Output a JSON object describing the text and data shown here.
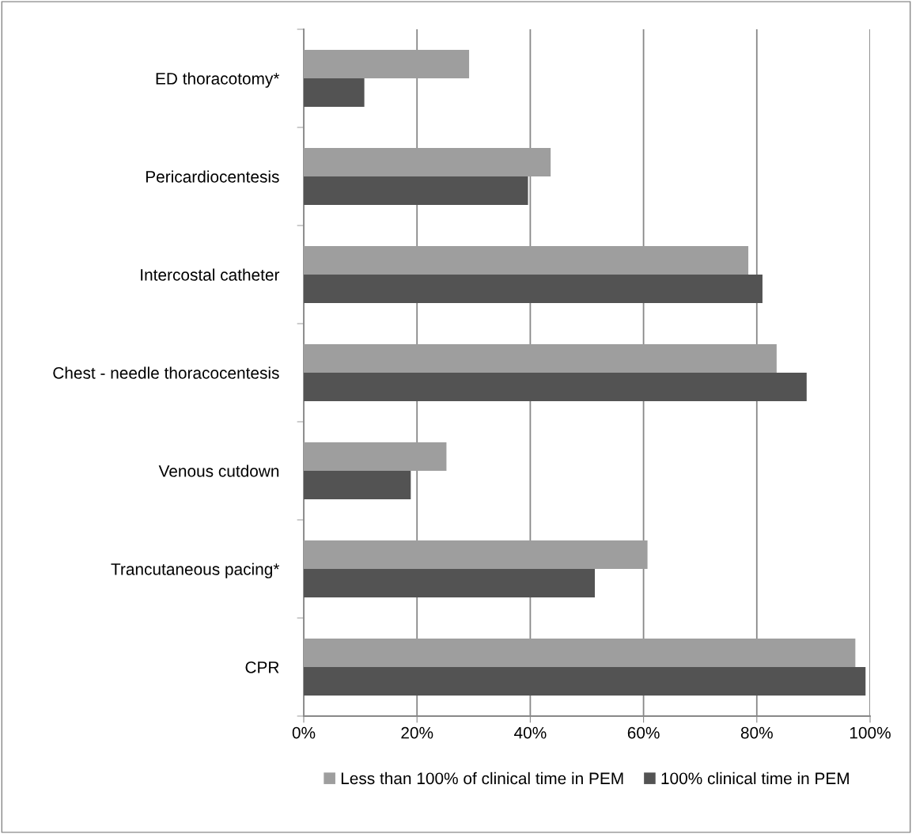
{
  "chart_data": {
    "type": "bar",
    "orientation": "horizontal",
    "categories": [
      "ED thoracotomy*",
      "Pericardiocentesis",
      "Intercostal catheter",
      "Chest - needle thoracocentesis",
      "Venous cutdown",
      "Trancutaneous pacing*",
      "CPR"
    ],
    "series": [
      {
        "name": "Less than 100% of clinical time in PEM",
        "color": "#9e9e9e",
        "values": [
          29.2,
          43.6,
          78.5,
          83.5,
          25.2,
          60.7,
          97.4
        ]
      },
      {
        "name": "100% clinical time in PEM",
        "color": "#535353",
        "values": [
          10.7,
          39.6,
          81.0,
          88.8,
          18.9,
          51.4,
          99.2
        ]
      }
    ],
    "xlim": [
      0,
      100
    ],
    "xticks": [
      {
        "value": 0,
        "label": "0%"
      },
      {
        "value": 20,
        "label": "20%"
      },
      {
        "value": 40,
        "label": "40%"
      },
      {
        "value": 60,
        "label": "60%"
      },
      {
        "value": 80,
        "label": "80%"
      },
      {
        "value": 100,
        "label": "100%"
      }
    ],
    "grid": "x",
    "legend": "bottom"
  }
}
